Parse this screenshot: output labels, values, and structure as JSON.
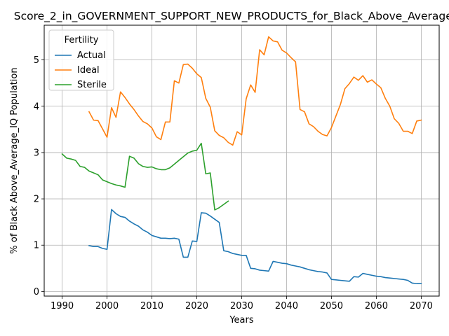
{
  "chart_data": {
    "type": "line",
    "title": "Score_2_in_GOVERNMENT_SUPPORT_NEW_PRODUCTS_for_Black_Above_Average_IQ",
    "xlabel": "Years",
    "ylabel": "% of Black Above_Average_IQ Population",
    "xlim": [
      1986,
      2074
    ],
    "ylim": [
      -0.1,
      5.75
    ],
    "xticks": [
      1990,
      2000,
      2010,
      2020,
      2030,
      2040,
      2050,
      2060,
      2070
    ],
    "yticks": [
      0,
      1,
      2,
      3,
      4,
      5
    ],
    "grid": true,
    "legend": {
      "title": "Fertility",
      "placement": "top-left"
    },
    "colors": {
      "Actual": "#1f77b4",
      "Ideal": "#ff7f0e",
      "Sterile": "#2ca02c"
    },
    "series": [
      {
        "name": "Actual",
        "x": [
          1996,
          1997,
          1998,
          1999,
          2000,
          2001,
          2002,
          2003,
          2004,
          2005,
          2006,
          2007,
          2008,
          2009,
          2010,
          2011,
          2012,
          2013,
          2014,
          2015,
          2016,
          2017,
          2018,
          2019,
          2020,
          2021,
          2022,
          2023,
          2024,
          2025,
          2026,
          2027,
          2028,
          2029,
          2030,
          2031,
          2032,
          2033,
          2034,
          2035,
          2036,
          2037,
          2038,
          2039,
          2040,
          2041,
          2042,
          2043,
          2044,
          2045,
          2046,
          2047,
          2048,
          2049,
          2050,
          2051,
          2052,
          2053,
          2054,
          2055,
          2056,
          2057,
          2058,
          2059,
          2060,
          2061,
          2062,
          2063,
          2064,
          2065,
          2066,
          2067,
          2068,
          2069,
          2070
        ],
        "values": [
          0.99,
          0.97,
          0.97,
          0.93,
          0.91,
          1.77,
          1.68,
          1.62,
          1.6,
          1.52,
          1.46,
          1.41,
          1.33,
          1.28,
          1.21,
          1.18,
          1.15,
          1.15,
          1.14,
          1.15,
          1.13,
          0.74,
          0.74,
          1.09,
          1.08,
          1.7,
          1.69,
          1.63,
          1.56,
          1.49,
          0.88,
          0.86,
          0.82,
          0.8,
          0.78,
          0.78,
          0.5,
          0.49,
          0.46,
          0.45,
          0.44,
          0.65,
          0.63,
          0.61,
          0.6,
          0.57,
          0.55,
          0.53,
          0.5,
          0.47,
          0.45,
          0.43,
          0.42,
          0.4,
          0.26,
          0.25,
          0.24,
          0.23,
          0.22,
          0.32,
          0.31,
          0.39,
          0.37,
          0.35,
          0.33,
          0.32,
          0.3,
          0.29,
          0.28,
          0.27,
          0.26,
          0.24,
          0.18,
          0.17,
          0.17
        ]
      },
      {
        "name": "Ideal",
        "x": [
          1996,
          1997,
          1998,
          1999,
          2000,
          2001,
          2002,
          2003,
          2004,
          2005,
          2006,
          2007,
          2008,
          2009,
          2010,
          2011,
          2012,
          2013,
          2014,
          2015,
          2016,
          2017,
          2018,
          2019,
          2020,
          2021,
          2022,
          2023,
          2024,
          2025,
          2026,
          2027,
          2028,
          2029,
          2030,
          2031,
          2032,
          2033,
          2034,
          2035,
          2036,
          2037,
          2038,
          2039,
          2040,
          2041,
          2042,
          2043,
          2044,
          2045,
          2046,
          2047,
          2048,
          2049,
          2050,
          2051,
          2052,
          2053,
          2054,
          2055,
          2056,
          2057,
          2058,
          2059,
          2060,
          2061,
          2062,
          2063,
          2064,
          2065,
          2066,
          2067,
          2068,
          2069,
          2070
        ],
        "values": [
          3.88,
          3.7,
          3.69,
          3.51,
          3.33,
          3.97,
          3.76,
          4.31,
          4.19,
          4.05,
          3.93,
          3.79,
          3.67,
          3.62,
          3.53,
          3.34,
          3.28,
          3.66,
          3.66,
          4.55,
          4.5,
          4.9,
          4.91,
          4.82,
          4.7,
          4.62,
          4.17,
          3.98,
          3.47,
          3.37,
          3.32,
          3.22,
          3.16,
          3.45,
          3.38,
          4.16,
          4.46,
          4.3,
          5.22,
          5.11,
          5.5,
          5.41,
          5.39,
          5.21,
          5.15,
          5.05,
          4.96,
          3.93,
          3.88,
          3.62,
          3.56,
          3.46,
          3.39,
          3.36,
          3.54,
          3.79,
          4.04,
          4.38,
          4.49,
          4.63,
          4.56,
          4.66,
          4.52,
          4.57,
          4.48,
          4.4,
          4.17,
          4.0,
          3.73,
          3.63,
          3.46,
          3.46,
          3.41,
          3.68,
          3.7
        ]
      },
      {
        "name": "Sterile",
        "x": [
          1990,
          1991,
          1992,
          1993,
          1994,
          1995,
          1996,
          1997,
          1998,
          1999,
          2000,
          2001,
          2002,
          2003,
          2004,
          2005,
          2006,
          2007,
          2008,
          2009,
          2010,
          2011,
          2012,
          2013,
          2014,
          2015,
          2016,
          2017,
          2018,
          2019,
          2020,
          2021,
          2022,
          2023,
          2024,
          2025,
          2026,
          2027
        ],
        "values": [
          2.97,
          2.88,
          2.86,
          2.83,
          2.7,
          2.68,
          2.6,
          2.56,
          2.52,
          2.41,
          2.37,
          2.33,
          2.3,
          2.28,
          2.25,
          2.92,
          2.88,
          2.76,
          2.7,
          2.68,
          2.69,
          2.65,
          2.63,
          2.63,
          2.67,
          2.75,
          2.83,
          2.91,
          2.99,
          3.03,
          3.05,
          3.2,
          2.54,
          2.56,
          1.76,
          1.81,
          1.88,
          1.95
        ]
      }
    ]
  }
}
